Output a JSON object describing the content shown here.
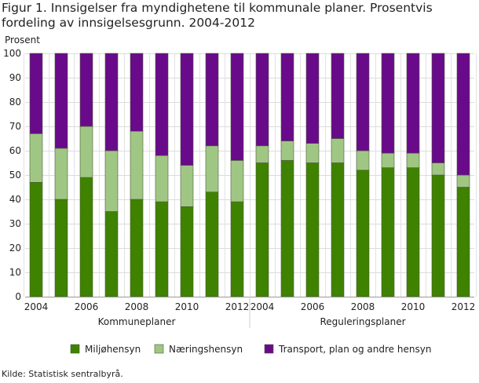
{
  "chart_data": {
    "type": "bar",
    "stacked": true,
    "title": "Figur 1. Innsigelser fra myndighetene til kommunale planer. Prosentvis fordeling av innsigelsesgrunn. 2004-2012",
    "ylabel": "Prosent",
    "ylim": [
      0,
      100
    ],
    "yticks": [
      0,
      10,
      20,
      30,
      40,
      50,
      60,
      70,
      80,
      90,
      100
    ],
    "grid": true,
    "legend_position": "bottom",
    "groups": [
      {
        "label": "Kommuneplaner",
        "categories": [
          "2004",
          "2005",
          "2006",
          "2007",
          "2008",
          "2009",
          "2010",
          "2011",
          "2012"
        ]
      },
      {
        "label": "Reguleringsplaner",
        "categories": [
          "2004",
          "2005",
          "2006",
          "2007",
          "2008",
          "2009",
          "2010",
          "2011",
          "2012"
        ]
      }
    ],
    "tick_labels": [
      "2004",
      "2006",
      "2008",
      "2010",
      "2012"
    ],
    "series": [
      {
        "name": "Miljøhensyn",
        "color": "#3f8200",
        "values": [
          47,
          40,
          49,
          35,
          40,
          39,
          37,
          43,
          39,
          55,
          56,
          55,
          55,
          52,
          53,
          53,
          50,
          45
        ]
      },
      {
        "name": "Næringshensyn",
        "color": "#a0c684",
        "values": [
          20,
          21,
          21,
          25,
          28,
          19,
          17,
          19,
          17,
          7,
          8,
          8,
          10,
          8,
          6,
          6,
          5,
          5
        ]
      },
      {
        "name": "Transport, plan og andre hensyn",
        "color": "#690a8a",
        "values": [
          33,
          39,
          30,
          40,
          32,
          42,
          46,
          38,
          44,
          38,
          36,
          37,
          35,
          40,
          41,
          41,
          45,
          50
        ]
      }
    ]
  },
  "source": "Kilde: Statistisk sentralbyrå."
}
